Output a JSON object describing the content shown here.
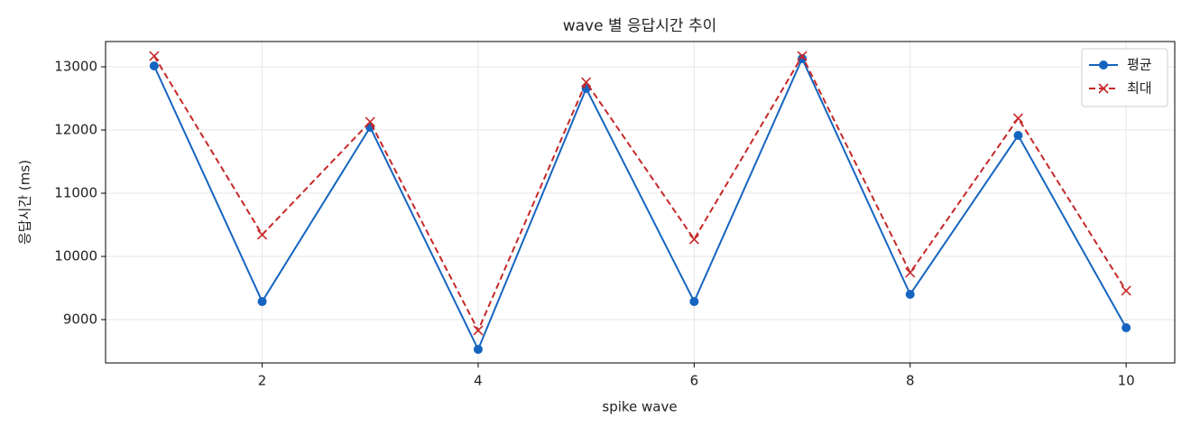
{
  "chart_data": {
    "type": "line",
    "title": "wave 별 응답시간 추이",
    "xlabel": "spike wave",
    "ylabel": "응답시간 (ms)",
    "x": [
      1,
      2,
      3,
      4,
      5,
      6,
      7,
      8,
      9,
      10
    ],
    "series": [
      {
        "name": "평균",
        "color": "#1565c0",
        "dash": "solid",
        "marker": "o",
        "values": [
          13014,
          9286,
          12043,
          8529,
          12657,
          9286,
          13129,
          9400,
          11914,
          8871
        ]
      },
      {
        "name": "최대",
        "color": "#c62828",
        "dash": "dashed",
        "marker": "x",
        "values": [
          13171,
          10343,
          12129,
          8829,
          12757,
          10271,
          13171,
          9743,
          12186,
          9457
        ]
      }
    ],
    "xlim": [
      0.55,
      10.45
    ],
    "xticks": [
      2,
      4,
      6,
      8,
      10
    ],
    "ylim": [
      8314,
      13400
    ],
    "yticks": [
      9000,
      10000,
      11000,
      12000,
      13000
    ],
    "grid": true,
    "legend": "upper-right"
  }
}
